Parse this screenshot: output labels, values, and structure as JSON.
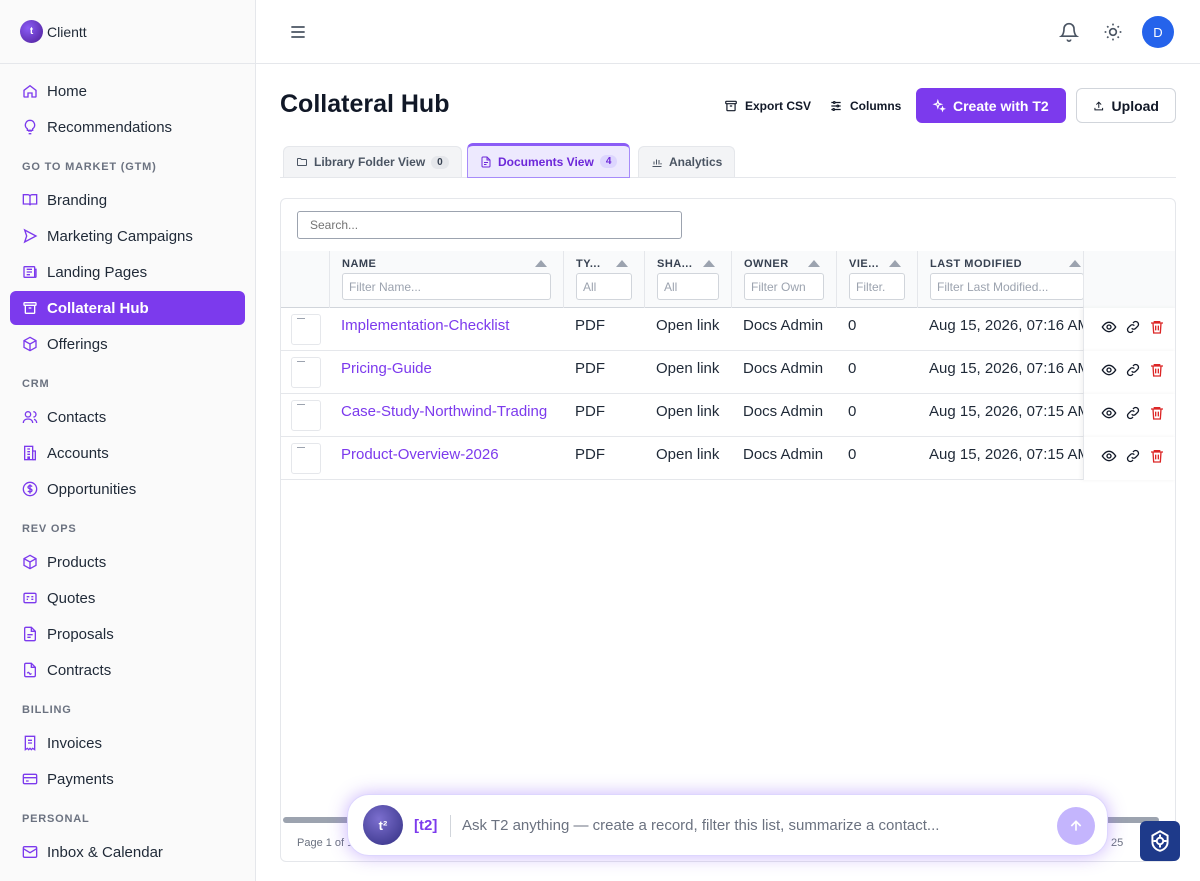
{
  "app": {
    "name": "Clientt",
    "logo_glyph": "t"
  },
  "sidebar": {
    "items": [
      {
        "label": "Home",
        "icon": "home-icon"
      },
      {
        "label": "Recommendations",
        "icon": "lightbulb-icon"
      },
      {
        "section": "GO TO MARKET (GTM)"
      },
      {
        "label": "Branding",
        "icon": "book-icon"
      },
      {
        "label": "Marketing Campaigns",
        "icon": "send-icon"
      },
      {
        "label": "Landing Pages",
        "icon": "newspaper-icon"
      },
      {
        "label": "Collateral Hub",
        "icon": "archive-icon",
        "active": true
      },
      {
        "label": "Offerings",
        "icon": "box-icon"
      },
      {
        "section": "CRM"
      },
      {
        "label": "Contacts",
        "icon": "users-icon"
      },
      {
        "label": "Accounts",
        "icon": "building-icon"
      },
      {
        "label": "Opportunities",
        "icon": "dollar-icon"
      },
      {
        "section": "REV OPS"
      },
      {
        "label": "Products",
        "icon": "box-icon"
      },
      {
        "label": "Quotes",
        "icon": "quote-icon"
      },
      {
        "label": "Proposals",
        "icon": "file-icon"
      },
      {
        "label": "Contracts",
        "icon": "file-signature-icon"
      },
      {
        "section": "BILLING"
      },
      {
        "label": "Invoices",
        "icon": "receipt-icon"
      },
      {
        "label": "Payments",
        "icon": "credit-card-icon"
      },
      {
        "section": "PERSONAL"
      },
      {
        "label": "Inbox & Calendar",
        "icon": "mail-icon"
      }
    ]
  },
  "topbar": {
    "avatar_initial": "D"
  },
  "page": {
    "title": "Collateral Hub",
    "export_label": "Export CSV",
    "columns_label": "Columns",
    "create_label": "Create with T2",
    "upload_label": "Upload"
  },
  "tabs": [
    {
      "label": "Library Folder View",
      "count": "0"
    },
    {
      "label": "Documents View",
      "count": "4",
      "active": true
    },
    {
      "label": "Analytics"
    }
  ],
  "grid": {
    "search_placeholder": "Search...",
    "columns": [
      {
        "label": "NAME",
        "filter": "Filter Name..."
      },
      {
        "label": "TY...",
        "filter": "All"
      },
      {
        "label": "SHA...",
        "filter": "All"
      },
      {
        "label": "OWNER",
        "filter": "Filter Own"
      },
      {
        "label": "VIE...",
        "filter": "Filter."
      },
      {
        "label": "LAST MODIFIED",
        "filter": "Filter Last Modified..."
      }
    ],
    "rows": [
      {
        "name": "Implementation-Checklist",
        "type": "PDF",
        "share": "Open link",
        "owner": "Docs Admin",
        "views": "0",
        "modified": "Aug 15, 2026, 07:16 AM"
      },
      {
        "name": "Pricing-Guide",
        "type": "PDF",
        "share": "Open link",
        "owner": "Docs Admin",
        "views": "0",
        "modified": "Aug 15, 2026, 07:16 AM"
      },
      {
        "name": "Case-Study-Northwind-Trading",
        "type": "PDF",
        "share": "Open link",
        "owner": "Docs Admin",
        "views": "0",
        "modified": "Aug 15, 2026, 07:15 AM"
      },
      {
        "name": "Product-Overview-2026",
        "type": "PDF",
        "share": "Open link",
        "owner": "Docs Admin",
        "views": "0",
        "modified": "Aug 15, 2026, 07:15 AM"
      }
    ],
    "footer_text": "Page 1 of 1",
    "page_size": "25"
  },
  "chat": {
    "avatar_text": "t²",
    "tag": "[t2]",
    "placeholder": "Ask T2 anything — create a record, filter this list, summarize a contact..."
  },
  "colors": {
    "accent": "#7c3aed",
    "danger": "#dc2626",
    "avatar": "#2563eb"
  }
}
